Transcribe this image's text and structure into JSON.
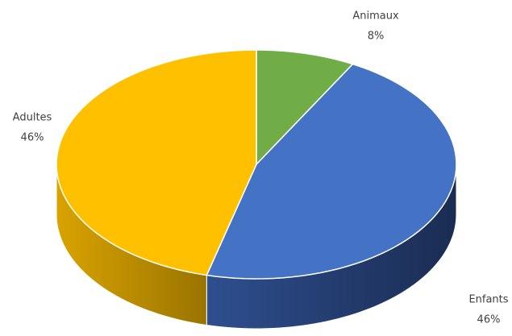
{
  "chart_data": {
    "type": "pie",
    "categories": [
      "Animaux",
      "Enfants",
      "Adultes"
    ],
    "values": [
      8,
      46,
      46
    ],
    "value_labels": [
      "8%",
      "46%",
      "46%"
    ],
    "colors": [
      "#70ad47",
      "#4472c4",
      "#ffc000"
    ]
  }
}
